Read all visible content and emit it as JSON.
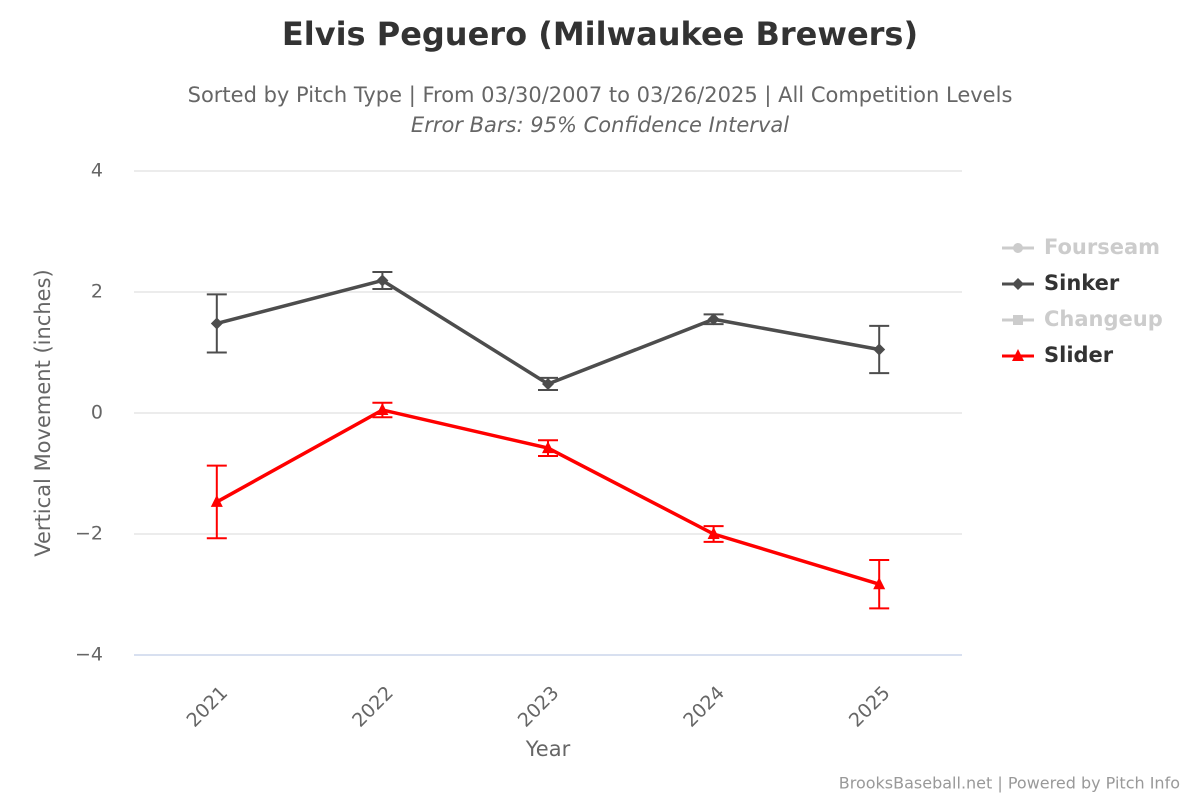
{
  "chart_data": {
    "type": "line",
    "title": "Elvis Peguero (Milwaukee Brewers)",
    "subtitle": "Sorted by Pitch Type | From 03/30/2007 to 03/26/2025 | All Competition Levels",
    "subtitle2": "Error Bars: 95% Confidence Interval",
    "ylabel": "Vertical Movement (inches)",
    "xlabel": "Year",
    "credits": "BrooksBaseball.net | Powered by Pitch Info",
    "categories": [
      "2021",
      "2022",
      "2023",
      "2024",
      "2025"
    ],
    "ylim": [
      -4,
      4
    ],
    "yticks": [
      4,
      2,
      0,
      {
        "value": -2,
        "label": "−2"
      },
      {
        "value": -4,
        "label": "−4"
      }
    ],
    "grid": true,
    "legend": "right",
    "series": [
      {
        "name": "Fourseam",
        "color": "#cccccc",
        "marker": "circle",
        "visible": false,
        "values": [
          null,
          null,
          null,
          null,
          null
        ],
        "errors": [
          null,
          null,
          null,
          null,
          null
        ]
      },
      {
        "name": "Sinker",
        "color": "#4d4d4d",
        "marker": "diamond",
        "visible": true,
        "values": [
          1.48,
          2.19,
          0.48,
          1.55,
          1.05
        ],
        "errors": [
          0.48,
          0.14,
          0.1,
          0.08,
          0.39
        ]
      },
      {
        "name": "Changeup",
        "color": "#cccccc",
        "marker": "square",
        "visible": false,
        "values": [
          null,
          null,
          null,
          null,
          null
        ],
        "errors": [
          null,
          null,
          null,
          null,
          null
        ]
      },
      {
        "name": "Slider",
        "color": "#ff0000",
        "marker": "triangle",
        "visible": true,
        "values": [
          -1.47,
          0.05,
          -0.58,
          -2.0,
          -2.83
        ],
        "errors": [
          0.6,
          0.12,
          0.13,
          0.13,
          0.4
        ]
      }
    ]
  }
}
